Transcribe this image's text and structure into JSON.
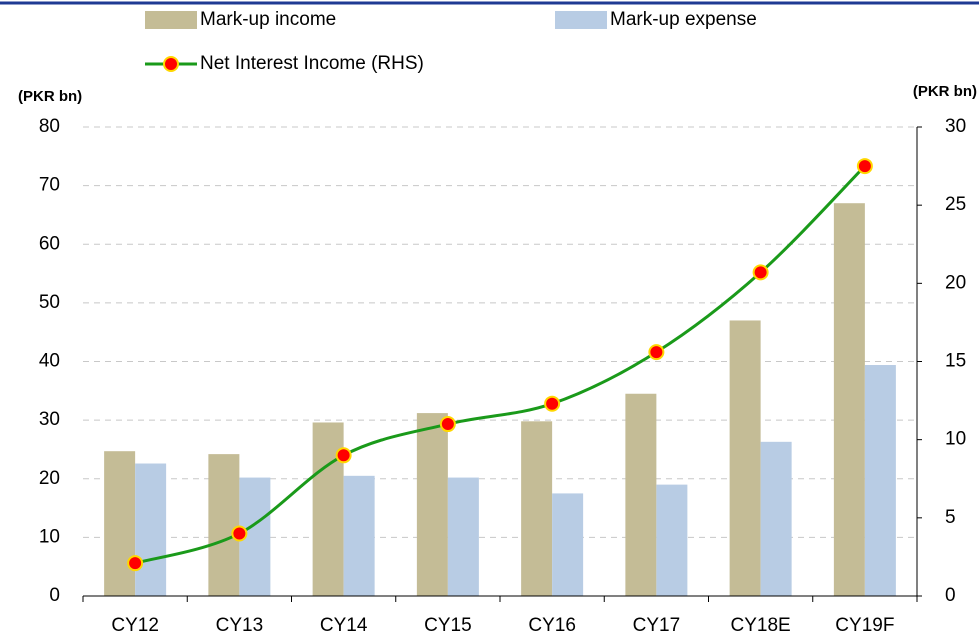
{
  "chart_data": {
    "type": "bar_line",
    "y_label": "(PKR bn)",
    "y2_label": "(PKR bn)",
    "categories": [
      "CY12",
      "CY13",
      "CY14",
      "CY15",
      "CY16",
      "CY17",
      "CY18E",
      "CY19F"
    ],
    "series": [
      {
        "name": "Mark-up income",
        "type": "bar",
        "color": "#c4bc96",
        "values": [
          24.7,
          24.2,
          29.6,
          31.2,
          29.8,
          34.5,
          47.0,
          67.0
        ]
      },
      {
        "name": "Mark-up expense",
        "type": "bar",
        "color": "#b8cce4",
        "values": [
          22.6,
          20.2,
          20.5,
          20.2,
          17.5,
          19.0,
          26.3,
          39.4
        ]
      },
      {
        "name": "Net Interest Income (RHS)",
        "type": "line",
        "axis": "y2",
        "color": "#1a9a1a",
        "marker_color": "#ff0000",
        "values": [
          2.1,
          4.0,
          9.0,
          11.0,
          12.3,
          15.6,
          20.7,
          27.5
        ]
      }
    ],
    "ylim": [
      0,
      80
    ],
    "yticks": [
      0,
      10,
      20,
      30,
      40,
      50,
      60,
      70,
      80
    ],
    "y2lim": [
      0,
      30
    ],
    "y2ticks": [
      0,
      5,
      10,
      15,
      20,
      25,
      30
    ],
    "grid": true
  }
}
